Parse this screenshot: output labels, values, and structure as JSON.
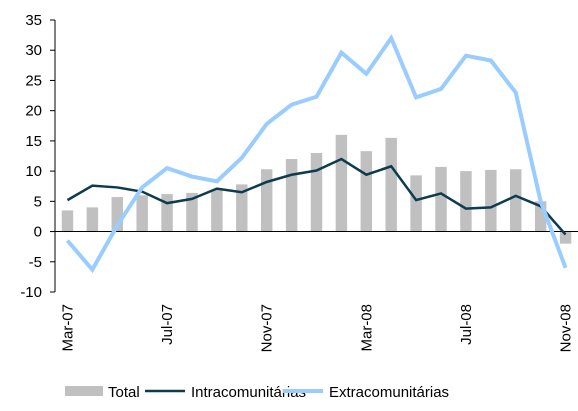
{
  "chart_data": {
    "type": "bar_line",
    "categories": [
      "Mar-07",
      null,
      null,
      null,
      "Jul-07",
      null,
      null,
      null,
      "Nov-07",
      null,
      null,
      null,
      "Mar-08",
      null,
      null,
      null,
      "Jul-08",
      null,
      null,
      null,
      "Nov-08"
    ],
    "series": [
      {
        "name": "Total",
        "kind": "bar",
        "color": "#c0c0c0",
        "values": [
          3.5,
          4,
          5.7,
          6,
          6.2,
          6.4,
          7,
          7.8,
          10.3,
          12,
          13,
          16,
          13.3,
          15.5,
          9.3,
          10.7,
          10,
          10.2,
          10.3,
          5,
          -2
        ]
      },
      {
        "name": "Intracomunitárias",
        "kind": "line",
        "color": "#0d3b4f",
        "values": [
          5.2,
          7.6,
          7.3,
          6.6,
          4.7,
          5.4,
          7.1,
          6.5,
          8.2,
          9.4,
          10.1,
          12,
          9.4,
          10.8,
          5.2,
          6.3,
          3.8,
          4,
          5.9,
          4.2,
          -0.5
        ]
      },
      {
        "name": "Extracomunitárias",
        "kind": "line",
        "color": "#99ccff",
        "values": [
          -1.5,
          -6.3,
          1,
          7.3,
          10.5,
          9.1,
          8.3,
          12.2,
          17.8,
          21,
          22.3,
          29.6,
          26.1,
          32,
          22.2,
          23.6,
          29.1,
          28.3,
          23,
          5,
          -6
        ]
      }
    ],
    "ylim": [
      -10,
      35
    ],
    "yticks": [
      -10,
      -5,
      0,
      5,
      10,
      15,
      20,
      25,
      30,
      35
    ],
    "legend": "bottom"
  }
}
